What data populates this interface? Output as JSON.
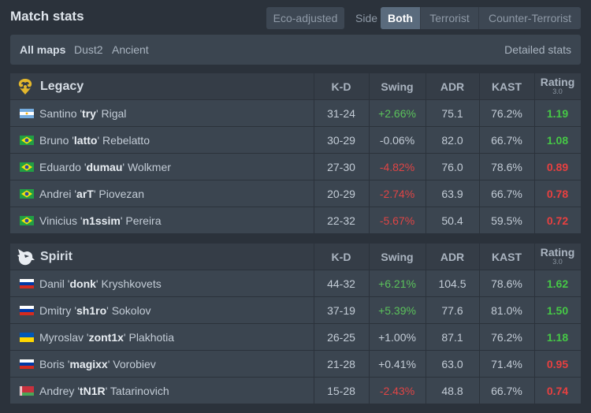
{
  "header": {
    "title": "Match stats",
    "eco_label": "Eco-adjusted",
    "side_label": "Side",
    "side_options": [
      "Both",
      "Terrorist",
      "Counter-Terrorist"
    ],
    "side_active": "Both"
  },
  "maps": {
    "tabs": [
      "All maps",
      "Dust2",
      "Ancient"
    ],
    "active": "All maps",
    "detailed_label": "Detailed stats"
  },
  "columns": {
    "kd": "K-D",
    "swing": "Swing",
    "adr": "ADR",
    "kast": "KAST",
    "rating": "Rating",
    "rating_sub": "3.0"
  },
  "colors": {
    "positive": "#5bc25b",
    "negative": "#e04545",
    "rating_good": "#46c846",
    "rating_bad": "#e84040"
  },
  "teams": [
    {
      "name": "Legacy",
      "logo_icon": "legacy-logo-icon",
      "players": [
        {
          "flag": "argentina-flag-icon",
          "first": "Santino",
          "nick": "try",
          "last": "Rigal",
          "kd": "31-24",
          "swing": "+2.66%",
          "swing_sign": "pos",
          "adr": "75.1",
          "kast": "76.2%",
          "rating": "1.19",
          "rating_sign": "good"
        },
        {
          "flag": "brazil-flag-icon",
          "first": "Bruno",
          "nick": "latto",
          "last": "Rebelatto",
          "kd": "30-29",
          "swing": "-0.06%",
          "swing_sign": "neu",
          "adr": "82.0",
          "kast": "66.7%",
          "rating": "1.08",
          "rating_sign": "good"
        },
        {
          "flag": "brazil-flag-icon",
          "first": "Eduardo",
          "nick": "dumau",
          "last": "Wolkmer",
          "kd": "27-30",
          "swing": "-4.82%",
          "swing_sign": "neg",
          "adr": "76.0",
          "kast": "78.6%",
          "rating": "0.89",
          "rating_sign": "bad"
        },
        {
          "flag": "brazil-flag-icon",
          "first": "Andrei",
          "nick": "arT",
          "last": "Piovezan",
          "kd": "20-29",
          "swing": "-2.74%",
          "swing_sign": "neg",
          "adr": "63.9",
          "kast": "66.7%",
          "rating": "0.78",
          "rating_sign": "bad"
        },
        {
          "flag": "brazil-flag-icon",
          "first": "Vinicius",
          "nick": "n1ssim",
          "last": "Pereira",
          "kd": "22-32",
          "swing": "-5.67%",
          "swing_sign": "neg",
          "adr": "50.4",
          "kast": "59.5%",
          "rating": "0.72",
          "rating_sign": "bad"
        }
      ]
    },
    {
      "name": "Spirit",
      "logo_icon": "spirit-logo-icon",
      "players": [
        {
          "flag": "russia-flag-icon",
          "first": "Danil",
          "nick": "donk",
          "last": "Kryshkovets",
          "kd": "44-32",
          "swing": "+6.21%",
          "swing_sign": "pos",
          "adr": "104.5",
          "kast": "78.6%",
          "rating": "1.62",
          "rating_sign": "good"
        },
        {
          "flag": "russia-flag-icon",
          "first": "Dmitry",
          "nick": "sh1ro",
          "last": "Sokolov",
          "kd": "37-19",
          "swing": "+5.39%",
          "swing_sign": "pos",
          "adr": "77.6",
          "kast": "81.0%",
          "rating": "1.50",
          "rating_sign": "good"
        },
        {
          "flag": "ukraine-flag-icon",
          "first": "Myroslav",
          "nick": "zont1x",
          "last": "Plakhotia",
          "kd": "26-25",
          "swing": "+1.00%",
          "swing_sign": "neu",
          "adr": "87.1",
          "kast": "76.2%",
          "rating": "1.18",
          "rating_sign": "good"
        },
        {
          "flag": "russia-flag-icon",
          "first": "Boris",
          "nick": "magixx",
          "last": "Vorobiev",
          "kd": "21-28",
          "swing": "+0.41%",
          "swing_sign": "neu",
          "adr": "63.0",
          "kast": "71.4%",
          "rating": "0.95",
          "rating_sign": "bad"
        },
        {
          "flag": "belarus-flag-icon",
          "first": "Andrey",
          "nick": "tN1R",
          "last": "Tatarinovich",
          "kd": "15-28",
          "swing": "-2.43%",
          "swing_sign": "neg",
          "adr": "48.8",
          "kast": "66.7%",
          "rating": "0.74",
          "rating_sign": "bad"
        }
      ]
    }
  ]
}
